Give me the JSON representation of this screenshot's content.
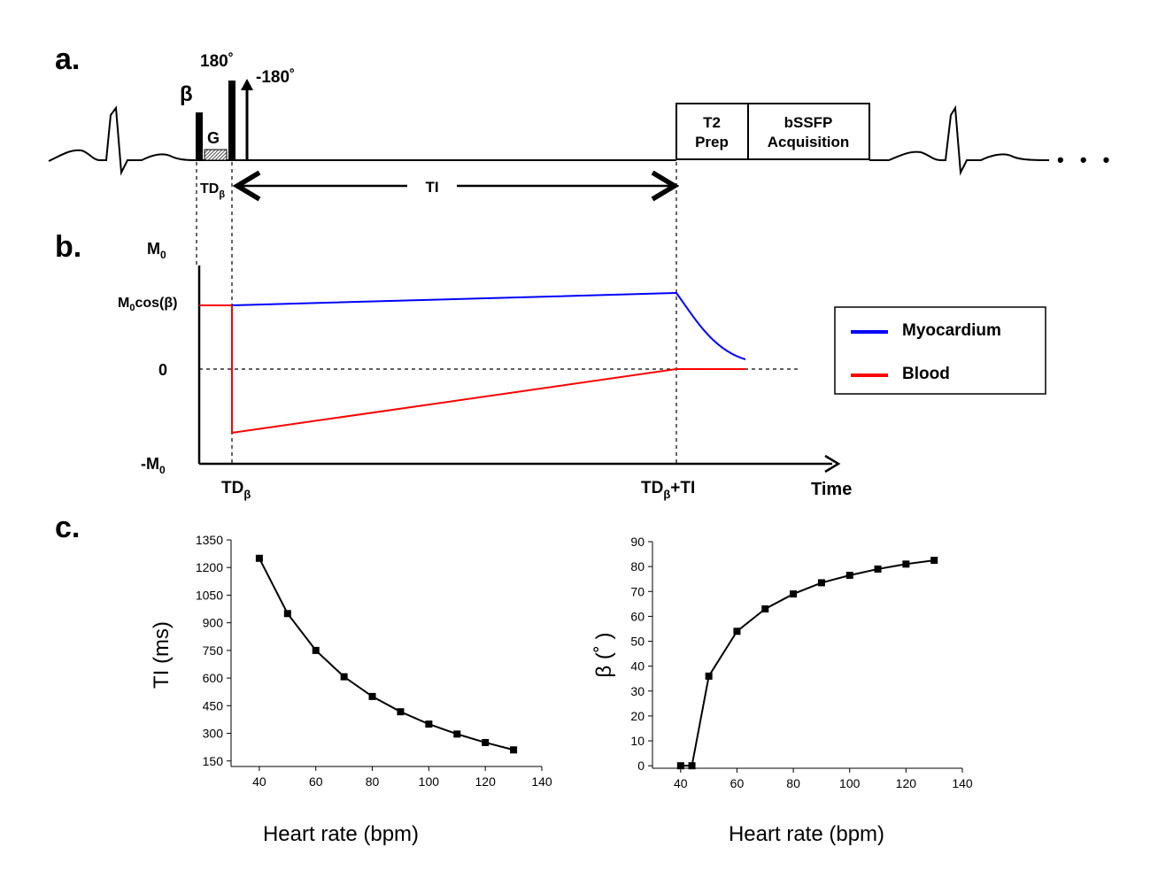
{
  "panel_a": {
    "label": "a.",
    "beta": "β",
    "gradient": "G",
    "pulse_180": "180˚",
    "pulse_neg180": "-180˚",
    "td_beta_main": "TD",
    "td_beta_sub": "β",
    "ti": "TI",
    "t2prep_line1": "T2",
    "t2prep_line2": "Prep",
    "bssfp_line1": "bSSFP",
    "bssfp_line2": "Acquisition",
    "ellipsis": "• • •"
  },
  "panel_b": {
    "label": "b.",
    "m0_main": "M",
    "m0_sub": "0",
    "m0cos_main": "M",
    "m0cos_sub": "0",
    "m0cos_rest": "cos(β)",
    "zero": "0",
    "negm0_main": "-M",
    "negm0_sub": "0",
    "x_td_main": "TD",
    "x_td_sub": "β",
    "x_tdti_main": "TD",
    "x_tdti_sub": "β",
    "x_tdti_rest": "+TI",
    "time": "Time",
    "legend": [
      {
        "name": "Myocardium",
        "color": "#0000ff"
      },
      {
        "name": "Blood",
        "color": "#ff0000"
      }
    ],
    "colors": {
      "myocardium": "#0000ff",
      "blood": "#ff0000"
    }
  },
  "panel_c": {
    "label": "c."
  },
  "chart_data": [
    {
      "type": "line",
      "title": "",
      "xlabel": "Heart rate (bpm)",
      "ylabel": "TI (ms)",
      "xlim": [
        30,
        140
      ],
      "ylim": [
        120,
        1350
      ],
      "xticks": [
        40,
        60,
        80,
        100,
        120,
        140
      ],
      "yticks": [
        150,
        300,
        450,
        600,
        750,
        900,
        1050,
        1200,
        1350
      ],
      "x": [
        40,
        50,
        60,
        70,
        80,
        90,
        100,
        110,
        120,
        130
      ],
      "y": [
        1250,
        950,
        750,
        607,
        500,
        417,
        350,
        296,
        250,
        210
      ]
    },
    {
      "type": "line",
      "title": "",
      "xlabel": "Heart rate (bpm)",
      "ylabel": "β (˚ )",
      "xlim": [
        30,
        140
      ],
      "ylim": [
        -1,
        90
      ],
      "xticks": [
        40,
        60,
        80,
        100,
        120,
        140
      ],
      "yticks": [
        0,
        10,
        20,
        30,
        40,
        50,
        60,
        70,
        80,
        90
      ],
      "x": [
        40,
        44,
        50,
        60,
        70,
        80,
        90,
        100,
        110,
        120,
        130
      ],
      "y": [
        0,
        0,
        36,
        54,
        63,
        69,
        73.5,
        76.5,
        79,
        81,
        82.5
      ]
    }
  ]
}
